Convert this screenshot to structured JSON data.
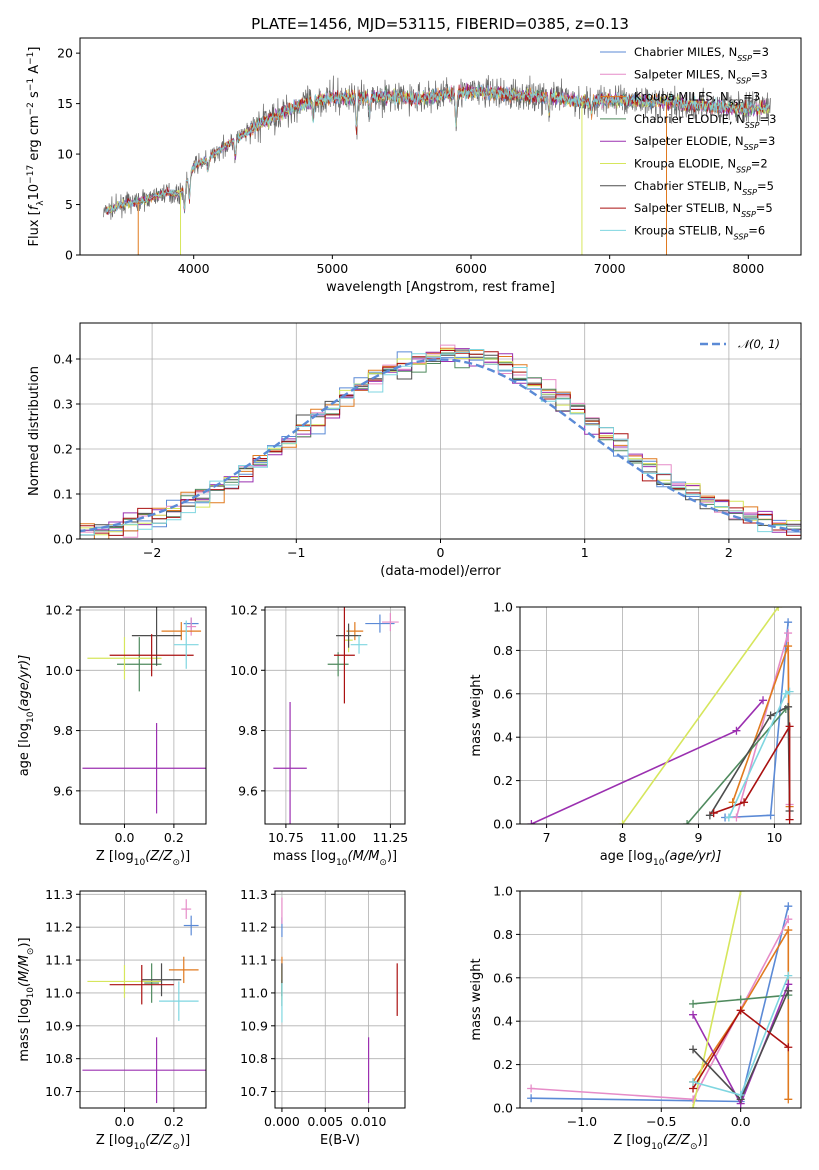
{
  "figure": {
    "title": "PLATE=1456, MJD=53115, FIBERID=0385, z=0.13"
  },
  "chart_data": [
    {
      "id": "spectrum",
      "type": "line",
      "title": "PLATE=1456, MJD=53115, FIBERID=0385, z=0.13",
      "xlabel": "wavelength [Angstrom, rest frame]",
      "ylabel_parts": [
        "Flux [",
        "f",
        "λ",
        "10",
        "−17",
        " erg cm",
        "−2",
        " s",
        "−1",
        " A",
        "−1",
        "]"
      ],
      "xlim": [
        3180,
        8380
      ],
      "ylim": [
        0,
        21.5
      ],
      "xticks": [
        4000,
        5000,
        6000,
        7000,
        8000
      ],
      "yticks": [
        0,
        5,
        10,
        15,
        20
      ],
      "grid": false,
      "legend_position": "top-right",
      "continuum_x": [
        3350,
        3500,
        3600,
        3700,
        3800,
        3900,
        4000,
        4100,
        4200,
        4300,
        4400,
        4500,
        4600,
        4700,
        4800,
        4900,
        5000,
        5200,
        5400,
        5600,
        5800,
        6000,
        6200,
        6400,
        6600,
        6800,
        7000,
        7200,
        7400,
        7600,
        7800,
        8000,
        8150
      ],
      "continuum_y": [
        4.2,
        5.1,
        5.3,
        5.7,
        6.2,
        6.0,
        8.8,
        9.5,
        10.5,
        11.5,
        12.2,
        13.2,
        13.8,
        14.5,
        15.0,
        15.4,
        15.6,
        15.6,
        15.7,
        15.5,
        15.9,
        16.2,
        16.0,
        15.8,
        15.6,
        15.2,
        15.4,
        15.3,
        15.2,
        14.9,
        14.7,
        14.5,
        14.6
      ],
      "series": [
        {
          "name_parts": [
            "Chabrier MILES, N",
            "SSP",
            "=3"
          ],
          "color": "#5b8ad6"
        },
        {
          "name_parts": [
            "Salpeter MILES, N",
            "SSP",
            "=3"
          ],
          "color": "#e68cc8"
        },
        {
          "name_parts": [
            "Kroupa MILES, N",
            "SSP",
            "=3"
          ],
          "color": "#e07a1f"
        },
        {
          "name_parts": [
            "Chabrier ELODIE, N",
            "SSP",
            "=3"
          ],
          "color": "#4f8a5e"
        },
        {
          "name_parts": [
            "Salpeter ELODIE, N",
            "SSP",
            "=3"
          ],
          "color": "#9b30b0"
        },
        {
          "name_parts": [
            "Kroupa ELODIE, N",
            "SSP",
            "=2"
          ],
          "color": "#d6e65c"
        },
        {
          "name_parts": [
            "Chabrier STELIB, N",
            "SSP",
            "=5"
          ],
          "color": "#4d4d4d"
        },
        {
          "name_parts": [
            "Salpeter STELIB, N",
            "SSP",
            "=5"
          ],
          "color": "#aa1111"
        },
        {
          "name_parts": [
            "Kroupa STELIB, N",
            "SSP",
            "=6"
          ],
          "color": "#7fd6e0"
        }
      ]
    },
    {
      "id": "residuals",
      "type": "histogram",
      "xlabel": "(data-model)/error",
      "ylabel": "Normed distribution",
      "xlim": [
        -2.5,
        2.5
      ],
      "ylim": [
        0,
        0.48
      ],
      "xticks": [
        -2,
        -1,
        0,
        1,
        2
      ],
      "xtick_labels": [
        "−2",
        "−1",
        "0",
        "1",
        "2"
      ],
      "yticks": [
        0.0,
        0.1,
        0.2,
        0.3,
        0.4
      ],
      "grid": true,
      "legend_position": "top-right",
      "legend_label": "𝒩(0, 1)",
      "reference_curve": "normal(0,1)",
      "bin_width": 0.1,
      "colors": [
        "#5b8ad6",
        "#e68cc8",
        "#e07a1f",
        "#4f8a5e",
        "#9b30b0",
        "#d6e65c",
        "#4d4d4d",
        "#aa1111",
        "#7fd6e0"
      ]
    },
    {
      "id": "age-vs-Z",
      "type": "scatter",
      "xlabel_parts": [
        "Z [log",
        "10",
        "(Z/Z",
        "⊙",
        ")]"
      ],
      "ylabel_parts": [
        "age  [log",
        "10",
        "(age/yr)]"
      ],
      "xlim": [
        -0.18,
        0.33
      ],
      "ylim": [
        9.49,
        10.21
      ],
      "xticks": [
        0.0,
        0.2
      ],
      "yticks": [
        9.6,
        9.8,
        10.0,
        10.2
      ],
      "grid": true,
      "points": [
        {
          "x": 0.27,
          "y": 10.155,
          "xerr": 0.03,
          "yerr": 0.02,
          "color": "#5b8ad6"
        },
        {
          "x": 0.27,
          "y": 10.145,
          "xerr": 0.02,
          "yerr": 0.03,
          "color": "#e68cc8"
        },
        {
          "x": 0.23,
          "y": 10.13,
          "xerr": 0.08,
          "yerr": 0.03,
          "color": "#e07a1f"
        },
        {
          "x": 0.06,
          "y": 10.02,
          "xerr": 0.09,
          "yerr": 0.09,
          "color": "#4f8a5e"
        },
        {
          "x": 0.13,
          "y": 9.675,
          "xerr": 0.3,
          "yerr": 0.15,
          "color": "#9b30b0"
        },
        {
          "x": 0.0,
          "y": 10.04,
          "xerr": 0.15,
          "yerr": 0.07,
          "color": "#d6e65c"
        },
        {
          "x": 0.13,
          "y": 10.115,
          "xerr": 0.1,
          "yerr": 0.1,
          "color": "#4d4d4d"
        },
        {
          "x": 0.11,
          "y": 10.05,
          "xerr": 0.17,
          "yerr": 0.07,
          "color": "#aa1111"
        },
        {
          "x": 0.25,
          "y": 10.085,
          "xerr": 0.05,
          "yerr": 0.08,
          "color": "#7fd6e0"
        }
      ]
    },
    {
      "id": "age-vs-mass",
      "type": "scatter",
      "xlabel_parts": [
        "mass [log",
        "10",
        "(M/M",
        "⊙",
        ")]"
      ],
      "xlim": [
        10.65,
        11.32
      ],
      "ylim": [
        9.49,
        10.21
      ],
      "xticks": [
        10.75,
        11.0,
        11.25
      ],
      "xtick_labels": [
        "10.75",
        "11.00",
        "11.25"
      ],
      "yticks": [
        9.6,
        9.8,
        10.0,
        10.2
      ],
      "grid": true,
      "points": [
        {
          "x": 11.2,
          "y": 10.155,
          "xerr": 0.07,
          "yerr": 0.03,
          "color": "#5b8ad6"
        },
        {
          "x": 11.25,
          "y": 10.16,
          "xerr": 0.04,
          "yerr": 0.03,
          "color": "#e68cc8"
        },
        {
          "x": 11.08,
          "y": 10.13,
          "xerr": 0.04,
          "yerr": 0.03,
          "color": "#e07a1f"
        },
        {
          "x": 11.0,
          "y": 10.02,
          "xerr": 0.05,
          "yerr": 0.04,
          "color": "#4f8a5e"
        },
        {
          "x": 10.77,
          "y": 9.675,
          "xerr": 0.08,
          "yerr": 0.22,
          "color": "#9b30b0"
        },
        {
          "x": 11.05,
          "y": 10.1,
          "xerr": 0.02,
          "yerr": 0.04,
          "color": "#d6e65c"
        },
        {
          "x": 11.05,
          "y": 10.115,
          "xerr": 0.06,
          "yerr": 0.04,
          "color": "#4d4d4d"
        },
        {
          "x": 11.03,
          "y": 10.05,
          "xerr": 0.05,
          "yerr": 0.16,
          "color": "#aa1111"
        },
        {
          "x": 11.1,
          "y": 10.085,
          "xerr": 0.04,
          "yerr": 0.03,
          "color": "#7fd6e0"
        }
      ]
    },
    {
      "id": "massweight-vs-age",
      "type": "line",
      "xlabel_parts": [
        "age  [log",
        "10",
        "(age/yr)]"
      ],
      "ylabel": "mass weight",
      "xlim": [
        6.65,
        10.35
      ],
      "ylim": [
        0,
        1.0
      ],
      "xticks": [
        7,
        8,
        9,
        10
      ],
      "yticks": [
        0.0,
        0.2,
        0.4,
        0.6,
        0.8,
        1.0
      ],
      "grid": true,
      "series": [
        {
          "color": "#5b8ad6",
          "x": [
            9.35,
            9.95,
            10.18
          ],
          "y": [
            0.03,
            0.04,
            0.93
          ]
        },
        {
          "color": "#e68cc8",
          "x": [
            9.5,
            10.18,
            10.2
          ],
          "y": [
            0.03,
            0.88,
            0.09
          ]
        },
        {
          "color": "#e07a1f",
          "x": [
            9.45,
            10.18,
            10.2
          ],
          "y": [
            0.1,
            0.82,
            0.08
          ]
        },
        {
          "color": "#4f8a5e",
          "x": [
            8.85,
            10.15
          ],
          "y": [
            0.0,
            0.53
          ]
        },
        {
          "color": "#9b30b0",
          "x": [
            6.8,
            9.5,
            9.85
          ],
          "y": [
            0.0,
            0.43,
            0.57
          ]
        },
        {
          "color": "#d6e65c",
          "x": [
            8.0,
            10.05
          ],
          "y": [
            0.0,
            1.0
          ]
        },
        {
          "color": "#4d4d4d",
          "x": [
            9.15,
            9.95,
            10.18,
            10.2
          ],
          "y": [
            0.04,
            0.5,
            0.54,
            0.06
          ]
        },
        {
          "color": "#aa1111",
          "x": [
            9.2,
            9.6,
            10.2,
            10.2
          ],
          "y": [
            0.05,
            0.1,
            0.45,
            0.02
          ]
        },
        {
          "color": "#7fd6e0",
          "x": [
            9.4,
            10.15,
            10.2
          ],
          "y": [
            0.03,
            0.6,
            0.61
          ]
        }
      ]
    },
    {
      "id": "mass-vs-Z",
      "type": "scatter",
      "xlabel_parts": [
        "Z [log",
        "10",
        "(Z/Z",
        "⊙",
        ")]"
      ],
      "ylabel_parts": [
        "mass [log",
        "10",
        "(M/M",
        "⊙",
        ")]"
      ],
      "xlim": [
        -0.18,
        0.33
      ],
      "ylim": [
        10.65,
        11.31
      ],
      "xticks": [
        0.0,
        0.2
      ],
      "yticks": [
        10.7,
        10.8,
        10.9,
        11.0,
        11.1,
        11.2,
        11.3
      ],
      "grid": true,
      "points": [
        {
          "x": 0.27,
          "y": 11.205,
          "xerr": 0.03,
          "yerr": 0.03,
          "color": "#5b8ad6"
        },
        {
          "x": 0.25,
          "y": 11.255,
          "xerr": 0.02,
          "yerr": 0.03,
          "color": "#e68cc8"
        },
        {
          "x": 0.24,
          "y": 11.07,
          "xerr": 0.06,
          "yerr": 0.04,
          "color": "#e07a1f"
        },
        {
          "x": 0.11,
          "y": 11.03,
          "xerr": 0.03,
          "yerr": 0.06,
          "color": "#4f8a5e"
        },
        {
          "x": 0.13,
          "y": 10.765,
          "xerr": 0.3,
          "yerr": 0.1,
          "color": "#9b30b0"
        },
        {
          "x": 0.0,
          "y": 11.035,
          "xerr": 0.15,
          "yerr": 0.05,
          "color": "#d6e65c"
        },
        {
          "x": 0.15,
          "y": 11.04,
          "xerr": 0.08,
          "yerr": 0.05,
          "color": "#4d4d4d"
        },
        {
          "x": 0.07,
          "y": 11.025,
          "xerr": 0.13,
          "yerr": 0.06,
          "color": "#aa1111"
        },
        {
          "x": 0.22,
          "y": 10.975,
          "xerr": 0.08,
          "yerr": 0.06,
          "color": "#7fd6e0"
        }
      ]
    },
    {
      "id": "mass-vs-ebv",
      "type": "scatter",
      "xlabel": "E(B-V)",
      "xlim": [
        -0.0008,
        0.0142
      ],
      "ylim": [
        10.65,
        11.31
      ],
      "xticks": [
        0.0,
        0.005,
        0.01
      ],
      "xtick_labels": [
        "0.000",
        "0.005",
        "0.010"
      ],
      "yticks": [
        10.7,
        10.8,
        10.9,
        11.0,
        11.1,
        11.2,
        11.3
      ],
      "grid": true,
      "points": [
        {
          "x": 0.0,
          "y": 11.2,
          "xerr": 0,
          "yerr": 0.03,
          "color": "#5b8ad6"
        },
        {
          "x": 0.0,
          "y": 11.25,
          "xerr": 0,
          "yerr": 0.04,
          "color": "#e68cc8"
        },
        {
          "x": 0.0,
          "y": 11.07,
          "xerr": 0,
          "yerr": 0.04,
          "color": "#e07a1f"
        },
        {
          "x": 0.0,
          "y": 11.0,
          "xerr": 0,
          "yerr": 0.04,
          "color": "#4f8a5e"
        },
        {
          "x": 0.01,
          "y": 10.765,
          "xerr": 0,
          "yerr": 0.1,
          "color": "#9b30b0"
        },
        {
          "x": 0.0,
          "y": 11.03,
          "xerr": 0,
          "yerr": 0.05,
          "color": "#d6e65c"
        },
        {
          "x": 0.0,
          "y": 11.04,
          "xerr": 0,
          "yerr": 0.05,
          "color": "#4d4d4d"
        },
        {
          "x": 0.0133,
          "y": 11.01,
          "xerr": 0,
          "yerr": 0.08,
          "color": "#aa1111"
        },
        {
          "x": 0.0,
          "y": 10.97,
          "xerr": 0,
          "yerr": 0.06,
          "color": "#7fd6e0"
        }
      ]
    },
    {
      "id": "massweight-vs-Z",
      "type": "line",
      "xlabel_parts": [
        "Z [log",
        "10",
        "(Z/Z",
        "⊙",
        ")]"
      ],
      "ylabel": "mass weight",
      "xlim": [
        -1.39,
        0.38
      ],
      "ylim": [
        0,
        1.0
      ],
      "xticks": [
        -1.0,
        -0.5,
        0.0
      ],
      "xtick_labels": [
        "−1.0",
        "−0.5",
        "0.0"
      ],
      "yticks": [
        0.0,
        0.2,
        0.4,
        0.6,
        0.8,
        1.0
      ],
      "grid": true,
      "series": [
        {
          "color": "#5b8ad6",
          "x": [
            -1.32,
            0.0,
            0.3
          ],
          "y": [
            0.045,
            0.03,
            0.93
          ]
        },
        {
          "color": "#e68cc8",
          "x": [
            -1.32,
            -0.3,
            0.3
          ],
          "y": [
            0.09,
            0.04,
            0.87
          ]
        },
        {
          "color": "#e07a1f",
          "x": [
            -0.3,
            0.0,
            0.3,
            0.3
          ],
          "y": [
            0.12,
            0.45,
            0.82,
            0.04
          ]
        },
        {
          "color": "#4f8a5e",
          "x": [
            -0.3,
            0.0,
            0.3
          ],
          "y": [
            0.48,
            0.5,
            0.52
          ]
        },
        {
          "color": "#9b30b0",
          "x": [
            -0.3,
            0.0,
            0.3
          ],
          "y": [
            0.43,
            0.02,
            0.57
          ]
        },
        {
          "color": "#d6e65c",
          "x": [
            -0.3,
            0.0
          ],
          "y": [
            0.0,
            1.0
          ]
        },
        {
          "color": "#4d4d4d",
          "x": [
            -0.3,
            0.0,
            0.3
          ],
          "y": [
            0.27,
            0.04,
            0.54
          ]
        },
        {
          "color": "#aa1111",
          "x": [
            -0.3,
            0.0,
            0.3
          ],
          "y": [
            0.09,
            0.45,
            0.28
          ]
        },
        {
          "color": "#7fd6e0",
          "x": [
            -0.3,
            0.0,
            0.3
          ],
          "y": [
            0.12,
            0.06,
            0.61
          ]
        }
      ]
    }
  ]
}
